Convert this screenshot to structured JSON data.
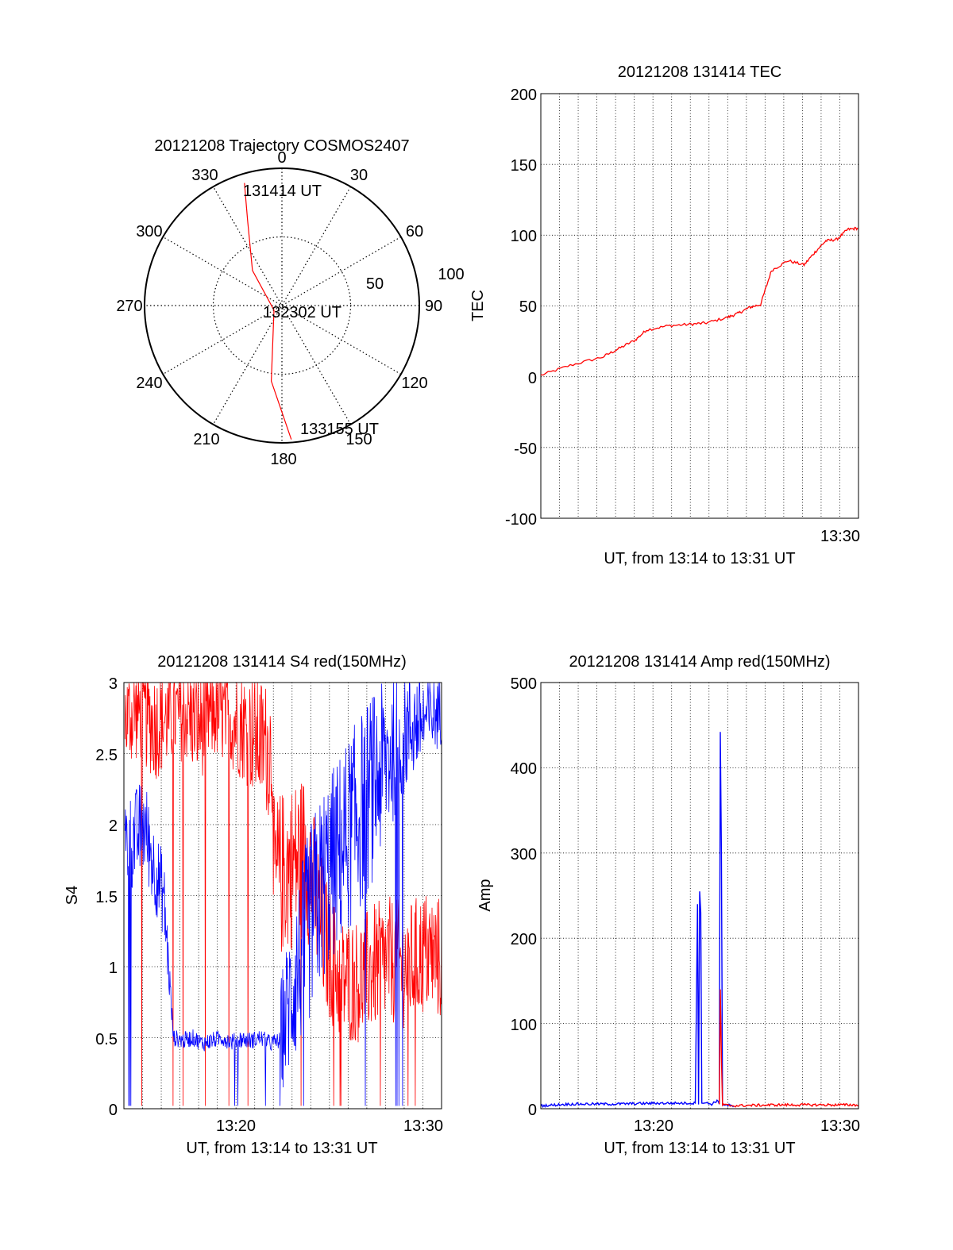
{
  "colors": {
    "red": "#ff0000",
    "blue": "#0000ff",
    "axis": "#000000",
    "grid": "#000000"
  },
  "chart_data": [
    {
      "type": "polar",
      "title": "20121208 Trajectory COSMOS2407",
      "azimuth_labels": [
        "0",
        "30",
        "60",
        "90",
        "120",
        "150",
        "180",
        "210",
        "240",
        "270",
        "300",
        "330"
      ],
      "radial_labels": [
        "50",
        "100"
      ],
      "series": [
        {
          "color": "red",
          "points": [
            {
              "az": 343,
              "zenith": 84
            },
            {
              "az": 338,
              "zenith": 60
            },
            {
              "az": 320,
              "zenith": 30
            },
            {
              "az": 240,
              "zenith": 6
            },
            {
              "az": 188,
              "zenith": 50
            },
            {
              "az": 176,
              "zenith": 88
            }
          ]
        }
      ],
      "annotations": [
        {
          "text": "131414 UT",
          "az": 343,
          "zenith": 84
        },
        {
          "text": "132302 UT",
          "az": 270,
          "zenith": 0
        },
        {
          "text": "133155 UT",
          "az": 176,
          "zenith": 88
        }
      ]
    },
    {
      "type": "line",
      "title": "20121208 131414 TEC",
      "xlabel": "UT, from 13:14 to 13:31 UT",
      "ylabel": "TEC",
      "xlim": [
        13.233,
        13.525
      ],
      "ylim": [
        -100,
        200
      ],
      "yticks": [
        "200",
        "150",
        "100",
        "50",
        "0",
        "-50",
        "-100"
      ],
      "xticks": [
        {
          "value": 13.5,
          "label": "13:30"
        }
      ],
      "grid": true,
      "series": [
        {
          "color": "red",
          "x": [
            13.233,
            13.26,
            13.29,
            13.305,
            13.32,
            13.33,
            13.35,
            13.37,
            13.385,
            13.405,
            13.415,
            13.425,
            13.435,
            13.445,
            13.46,
            13.475,
            13.485,
            13.495,
            13.505,
            13.515,
            13.525
          ],
          "y": [
            1,
            8,
            14,
            20,
            26,
            33,
            36,
            37,
            38,
            42,
            45,
            49,
            51,
            75,
            82,
            79,
            88,
            96,
            97,
            104,
            105
          ]
        }
      ]
    },
    {
      "type": "line",
      "title": "20121208 131414 S4 red(150MHz)",
      "xlabel": "UT, from 13:14 to 13:31 UT",
      "ylabel": "S4",
      "xlim": [
        13.233,
        13.525
      ],
      "ylim": [
        0,
        3
      ],
      "yticks": [
        "3",
        "2.5",
        "2",
        "1.5",
        "1",
        "0.5",
        "0"
      ],
      "xticks": [
        {
          "value": 13.333,
          "label": "13:20"
        },
        {
          "value": 13.5,
          "label": "13:30"
        }
      ],
      "grid": true,
      "series": [
        {
          "color": "blue",
          "segments": [
            {
              "x": [
                13.234,
                13.3765
              ],
              "center": [
                1.85,
                1.9,
                2.0,
                1.7,
                1.5,
                0.5,
                0.48,
                0.5,
                0.46,
                0.48,
                0.5,
                0.47,
                0.49,
                0.48,
                0.5,
                0.46,
                0.48
              ],
              "noise": [
                0.35,
                0.35,
                0.35,
                0.3,
                0.3,
                0.06,
                0.06,
                0.06,
                0.06,
                0.06,
                0.06,
                0.06,
                0.06,
                0.06,
                0.06,
                0.06,
                0.06
              ]
            },
            {
              "x": [
                13.3765,
                13.525
              ],
              "center": [
                0.5,
                0.9,
                1.3,
                1.6,
                1.8,
                2.0,
                2.2,
                2.4,
                2.6,
                2.7,
                2.75,
                2.8
              ],
              "noise": [
                0.4,
                0.6,
                0.7,
                0.7,
                0.7,
                0.7,
                0.7,
                0.6,
                0.5,
                0.4,
                0.3,
                0.25
              ]
            }
          ]
        },
        {
          "color": "red",
          "segments": [
            {
              "x": [
                13.234,
                13.37
              ],
              "center": [
                2.75,
                2.8,
                2.7,
                2.75,
                2.8,
                2.7,
                2.8,
                2.75,
                2.7,
                2.6,
                2.5
              ],
              "noise": [
                0.35,
                0.35,
                0.4,
                0.35,
                0.35,
                0.4,
                0.35,
                0.35,
                0.4,
                0.45,
                0.5
              ]
            },
            {
              "x": [
                13.37,
                13.525
              ],
              "center": [
                1.6,
                1.7,
                1.8,
                1.2,
                0.9,
                0.9,
                1.0,
                1.05,
                1.0,
                1.1,
                1.05
              ],
              "noise": [
                0.6,
                0.6,
                0.6,
                0.5,
                0.45,
                0.45,
                0.45,
                0.45,
                0.45,
                0.45,
                0.45
              ]
            }
          ]
        }
      ]
    },
    {
      "type": "line",
      "title": "20121208 131414 Amp red(150MHz)",
      "xlabel": "UT, from 13:14 to 13:31 UT",
      "ylabel": "Amp",
      "xlim": [
        13.233,
        13.525
      ],
      "ylim": [
        0,
        500
      ],
      "yticks": [
        "500",
        "400",
        "300",
        "200",
        "100",
        "0"
      ],
      "xticks": [
        {
          "value": 13.333,
          "label": "13:20"
        },
        {
          "value": 13.5,
          "label": "13:30"
        }
      ],
      "grid": true,
      "series": [
        {
          "color": "blue",
          "x": [
            13.233,
            13.26,
            13.3,
            13.34,
            13.375,
            13.377,
            13.378,
            13.379,
            13.38,
            13.381,
            13.39,
            13.395,
            13.397,
            13.398,
            13.399,
            13.4,
            13.402,
            13.41
          ],
          "y": [
            2,
            4,
            4,
            5,
            5,
            240,
            5,
            255,
            230,
            6,
            4,
            8,
            4,
            442,
            300,
            5,
            3,
            2
          ]
        },
        {
          "color": "red",
          "x": [
            13.397,
            13.398,
            13.399,
            13.4,
            13.41,
            13.45,
            13.5,
            13.525
          ],
          "y": [
            3,
            140,
            60,
            3,
            2,
            3,
            3,
            3
          ]
        }
      ]
    }
  ]
}
